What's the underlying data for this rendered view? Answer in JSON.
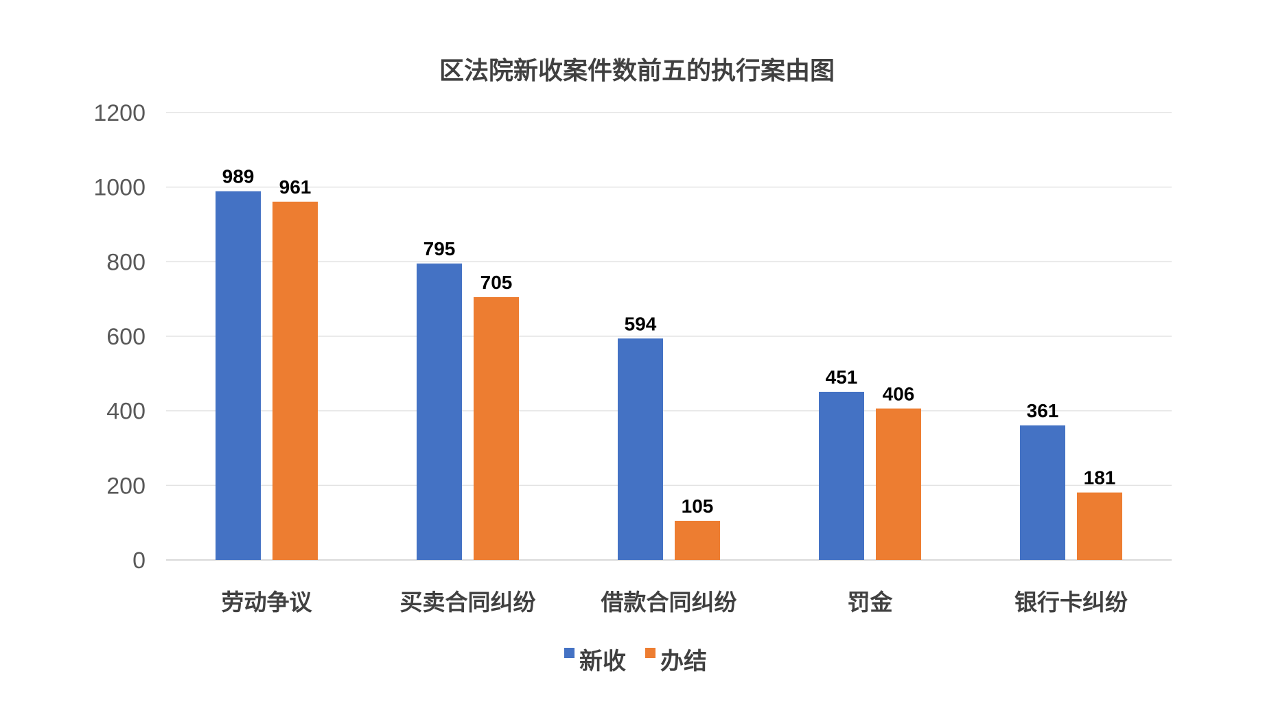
{
  "chart_data": {
    "type": "bar",
    "title": "区法院新收案件数前五的执行案由图",
    "categories": [
      "劳动争议",
      "买卖合同纠纷",
      "借款合同纠纷",
      "罚金",
      "银行卡纠纷"
    ],
    "series": [
      {
        "name": "新收",
        "color": "#4472C4",
        "values": [
          989,
          795,
          594,
          451,
          361
        ]
      },
      {
        "name": "办结",
        "color": "#ED7D31",
        "values": [
          961,
          705,
          105,
          406,
          181
        ]
      }
    ],
    "ylim": [
      0,
      1200
    ],
    "yticks": [
      0,
      200,
      400,
      600,
      800,
      1000,
      1200
    ],
    "grid": true,
    "legend": "bottom",
    "data_labels": true
  }
}
